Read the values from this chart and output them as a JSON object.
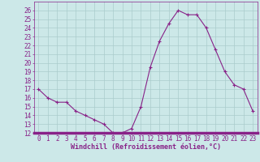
{
  "x": [
    0,
    1,
    2,
    3,
    4,
    5,
    6,
    7,
    8,
    9,
    10,
    11,
    12,
    13,
    14,
    15,
    16,
    17,
    18,
    19,
    20,
    21,
    22,
    23
  ],
  "y": [
    17,
    16,
    15.5,
    15.5,
    14.5,
    14,
    13.5,
    13,
    12,
    12,
    12.5,
    15,
    19.5,
    22.5,
    24.5,
    26,
    25.5,
    25.5,
    24,
    21.5,
    19,
    17.5,
    17,
    14.5
  ],
  "line_color": "#882288",
  "marker": "+",
  "marker_size": 3,
  "marker_linewidth": 0.8,
  "bg_color": "#cce8e8",
  "grid_color": "#aacccc",
  "xlabel": "Windchill (Refroidissement éolien,°C)",
  "xlabel_fontsize": 6,
  "tick_fontsize": 5.5,
  "ylim": [
    12,
    27
  ],
  "xlim": [
    -0.5,
    23.5
  ],
  "yticks": [
    12,
    13,
    14,
    15,
    16,
    17,
    18,
    19,
    20,
    21,
    22,
    23,
    24,
    25,
    26
  ],
  "xticks": [
    0,
    1,
    2,
    3,
    4,
    5,
    6,
    7,
    8,
    9,
    10,
    11,
    12,
    13,
    14,
    15,
    16,
    17,
    18,
    19,
    20,
    21,
    22,
    23
  ],
  "spine_color": "#882288",
  "line_width": 0.8
}
